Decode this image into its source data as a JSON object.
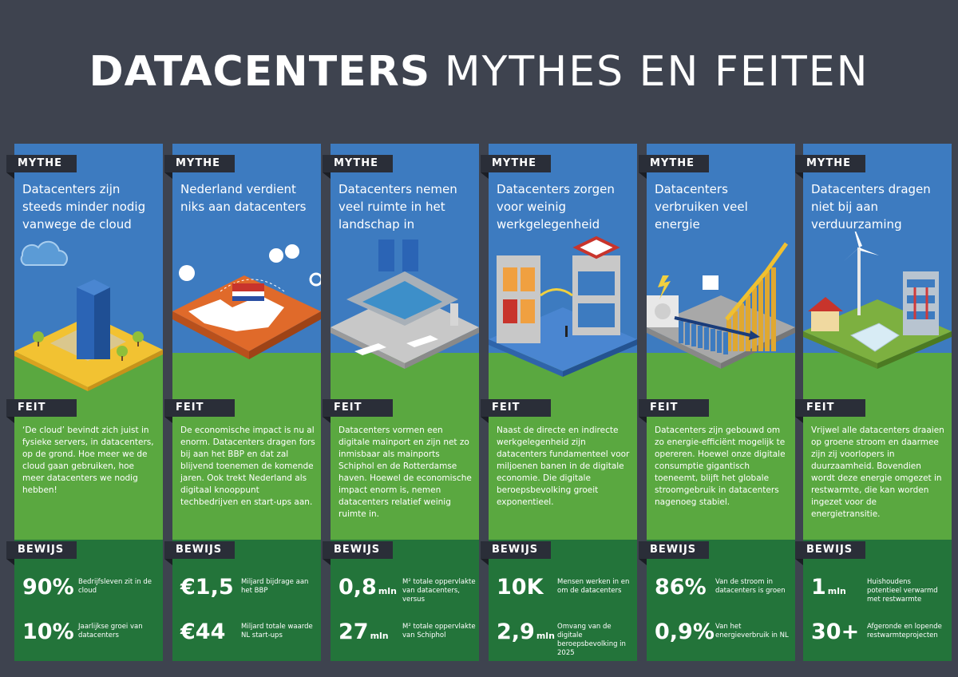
{
  "title": {
    "bold": "DATACENTERS",
    "light": "MYTHES EN FEITEN"
  },
  "labels": {
    "mythe": "MYTHE",
    "feit": "FEIT",
    "bewijs": "BEWIJS"
  },
  "colors": {
    "background": "#3e434f",
    "blue": "#3d7bc0",
    "green": "#5aa840",
    "dark_green": "#23743a",
    "label": "#2a2e38"
  },
  "columns": [
    {
      "mythe": "Datacenters zijn steeds minder nodig vanwege de cloud",
      "feit": "‘De cloud’ bevindt zich juist in fysieke servers, in datacenters, op de grond. Hoe meer we de cloud gaan gebruiken, hoe meer datacenters we nodig hebben!",
      "icon": "cloud-datacenter-illustration",
      "stats": [
        {
          "num": "90%",
          "unit": "",
          "desc": "Bedrijfsleven zit in de cloud"
        },
        {
          "num": "10%",
          "unit": "",
          "desc": "Jaarlijkse groei van datacenters"
        }
      ]
    },
    {
      "mythe": "Nederland verdient niks aan datacenters",
      "feit": "De economische impact is nu al enorm. Datacenters dragen fors bij aan het BBP en dat zal blijvend toenemen de komende jaren. Ook trekt Nederland als digitaal knooppunt techbedrijven en start-ups aan.",
      "icon": "netherlands-map-illustration",
      "stats": [
        {
          "num": "€1,5",
          "unit": "",
          "desc": "Miljard bijdrage aan het BBP"
        },
        {
          "num": "€44",
          "unit": "",
          "desc": "Miljard totale waarde NL start-ups"
        }
      ]
    },
    {
      "mythe": "Datacenters nemen veel ruimte in het landschap in",
      "feit": "Datacenters vormen een digitale mainport en zijn net zo inmisbaar als mainports Schiphol en de Rotterdamse haven. Hoewel de economische impact enorm is, nemen datacenters relatief weinig ruimte in.",
      "icon": "mainport-illustration",
      "stats": [
        {
          "num": "0,8",
          "unit": "mln",
          "desc": "M² totale oppervlakte van datacenters, versus"
        },
        {
          "num": "27",
          "unit": "mln",
          "desc": "M² totale oppervlakte van Schiphol"
        }
      ]
    },
    {
      "mythe": "Datacenters zorgen voor weinig werkgelegenheid",
      "feit": "Naast de directe en indirecte werkgelegenheid zijn datacenters fundamenteel voor miljoenen banen in de digitale economie. Die digitale beroepsbevolking groeit exponentieel.",
      "icon": "office-illustration",
      "stats": [
        {
          "num": "10K",
          "unit": "",
          "desc": "Mensen werken in en om de datacenters"
        },
        {
          "num": "2,9",
          "unit": "mln",
          "desc": "Omvang van de digitale beroepsbevolking in 2025"
        }
      ]
    },
    {
      "mythe": "Datacenters verbruiken veel energie",
      "feit": "Datacenters zijn gebouwd om zo energie-efficiënt mogelijk te opereren. Hoewel onze digitale consumptie gigantisch toeneemt, blijft het globale stroomgebruik in datacenters nagenoeg stabiel.",
      "icon": "energy-chart-illustration",
      "stats": [
        {
          "num": "86%",
          "unit": "",
          "desc": "Van de stroom in datacenters is groen"
        },
        {
          "num": "0,9%",
          "unit": "",
          "desc": "Van het energieverbruik in NL"
        }
      ]
    },
    {
      "mythe": "Datacenters dragen niet bij aan verduurzaming",
      "feit": "Vrijwel alle datacenters draaien op groene stroom en daarmee zijn zij voorlopers in duurzaamheid. Bovendien wordt deze energie omgezet in restwarmte, die kan worden ingezet voor de energietransitie.",
      "icon": "windmill-illustration",
      "stats": [
        {
          "num": "1",
          "unit": "mln",
          "desc": "Huishoudens potentieel verwarmd met restwarmte"
        },
        {
          "num": "30+",
          "unit": "",
          "desc": "Afgeronde en lopende restwarmteprojecten"
        }
      ]
    }
  ]
}
